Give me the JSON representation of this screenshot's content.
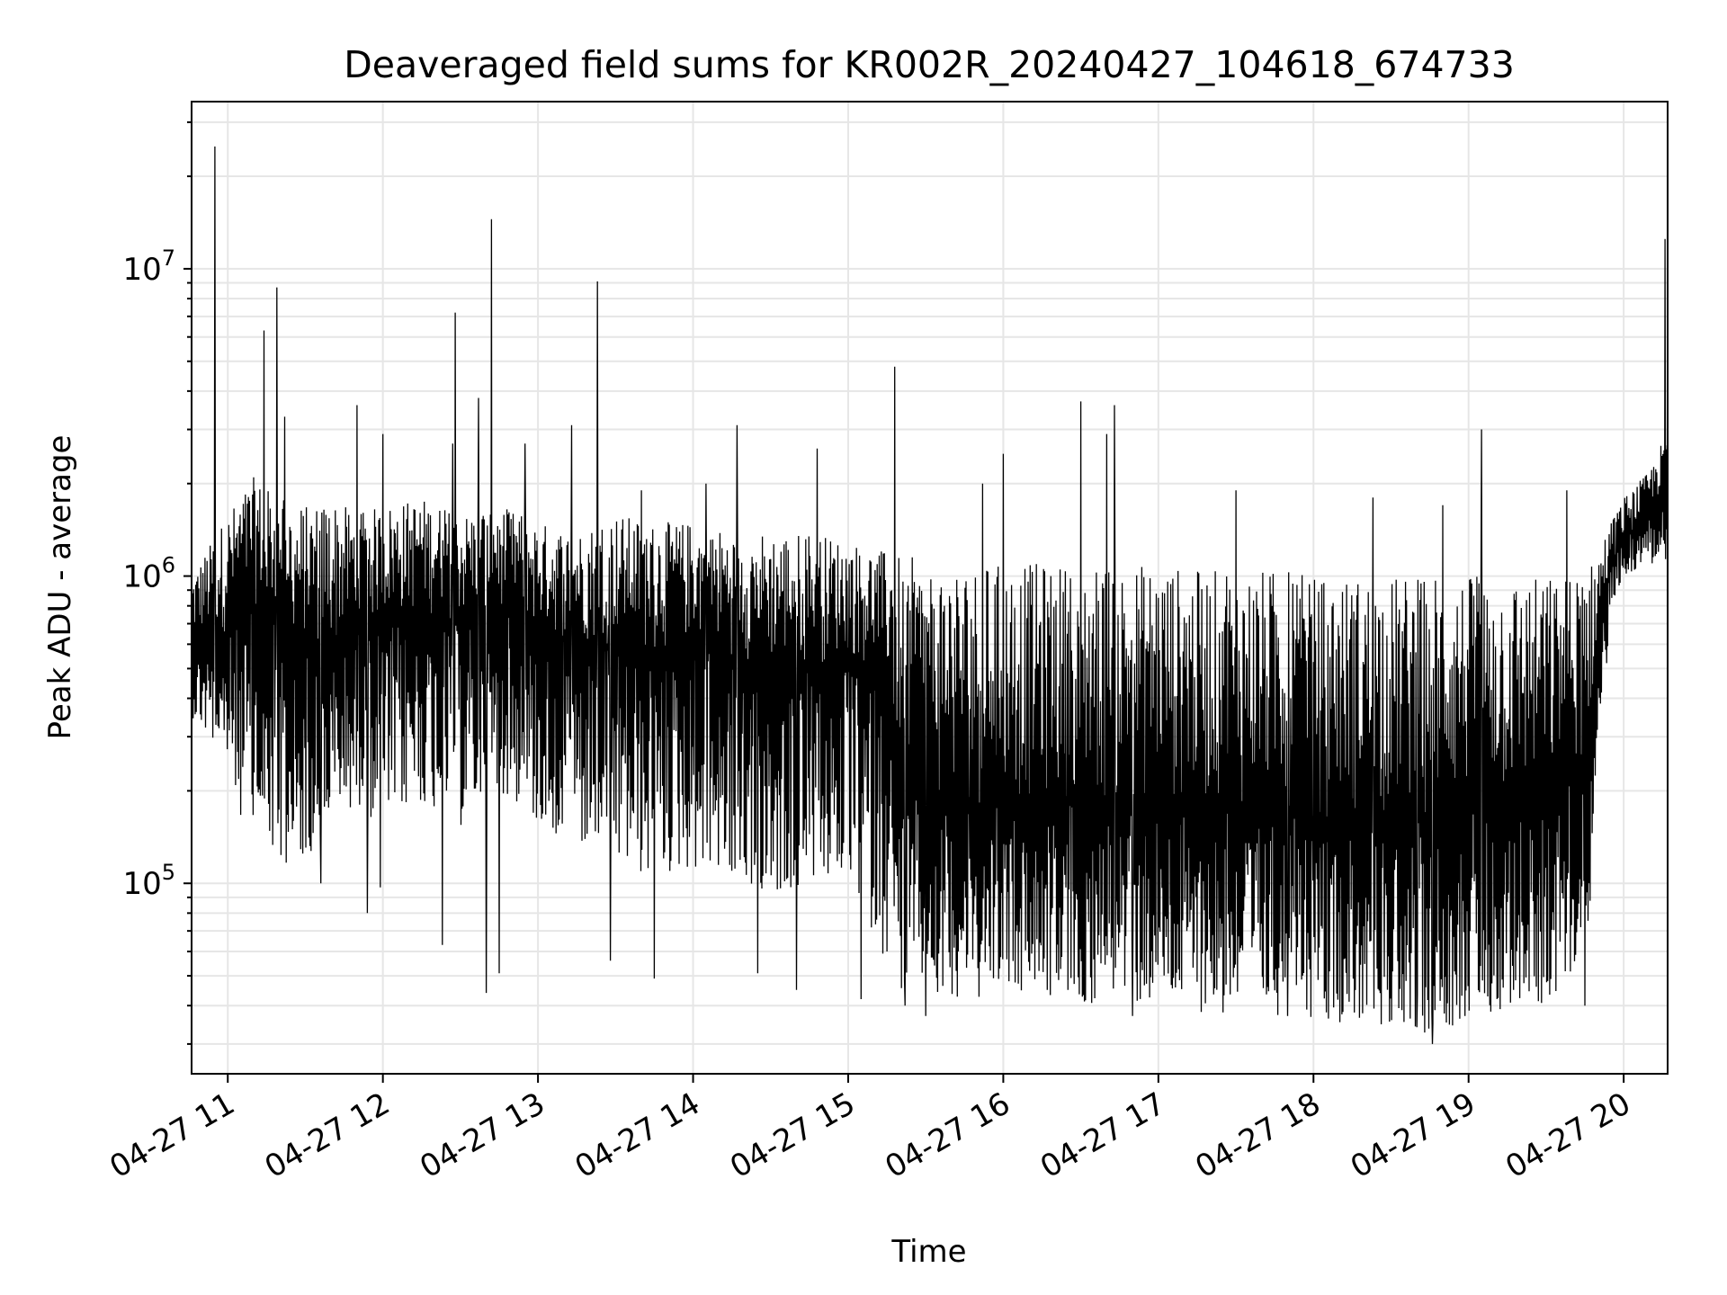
{
  "chart_data": {
    "type": "line",
    "title": "Deaveraged field sums for KR002R_20240427_104618_674733",
    "xlabel": "Time",
    "ylabel": "Peak ADU - average",
    "x_scale": "time",
    "y_scale": "log",
    "xlim": [
      "2024-04-27 10:46",
      "2024-04-27 20:17"
    ],
    "ylim": [
      24000,
      35000000
    ],
    "x_ticks": [
      "04-27 11",
      "04-27 12",
      "04-27 13",
      "04-27 14",
      "04-27 15",
      "04-27 16",
      "04-27 17",
      "04-27 18",
      "04-27 19",
      "04-27 20"
    ],
    "y_ticks": [
      {
        "value": 100000,
        "base": "10",
        "exp": "5"
      },
      {
        "value": 1000000,
        "base": "10",
        "exp": "6"
      },
      {
        "value": 10000000,
        "base": "10",
        "exp": "7"
      }
    ],
    "grid": true,
    "line_color": "#000000",
    "series": [
      {
        "x": [
          "10:46",
          "11:00",
          "11:10",
          "11:20",
          "11:30",
          "11:40",
          "11:50",
          "12:00",
          "12:15",
          "12:30",
          "12:45",
          "13:00",
          "13:15",
          "13:30",
          "13:45",
          "14:00",
          "14:15",
          "14:30",
          "14:45",
          "15:00",
          "15:15",
          "15:20",
          "15:30",
          "15:45",
          "16:00",
          "16:15",
          "16:30",
          "16:45",
          "17:00",
          "17:15",
          "17:30",
          "17:45",
          "18:00",
          "18:15",
          "18:30",
          "18:45",
          "19:00",
          "19:15",
          "19:30",
          "19:45",
          "19:55",
          "20:00",
          "20:10",
          "20:17"
        ],
        "y": [
          600000,
          650000,
          800000,
          700000,
          600000,
          550000,
          650000,
          700000,
          750000,
          700000,
          800000,
          650000,
          600000,
          600000,
          550000,
          600000,
          550000,
          500000,
          500000,
          550000,
          450000,
          200000,
          180000,
          170000,
          180000,
          180000,
          180000,
          170000,
          180000,
          170000,
          170000,
          165000,
          160000,
          160000,
          160000,
          160000,
          170000,
          170000,
          180000,
          250000,
          1100000,
          1300000,
          1600000,
          2000000
        ],
        "low": [
          350000,
          230000,
          120000,
          110000,
          120000,
          150000,
          180000,
          150000,
          180000,
          150000,
          200000,
          150000,
          130000,
          110000,
          100000,
          110000,
          100000,
          90000,
          95000,
          100000,
          55000,
          45000,
          45000,
          42000,
          42000,
          42000,
          40000,
          38000,
          40000,
          38000,
          38000,
          37000,
          36000,
          35000,
          34000,
          32000,
          36000,
          38000,
          40000,
          50000,
          800000,
          1000000,
          1100000,
          1100000
        ],
        "high": [
          1000000,
          1600000,
          2100000,
          1800000,
          1700000,
          1800000,
          1600000,
          1700000,
          1800000,
          1600000,
          1700000,
          1500000,
          1400000,
          1600000,
          1500000,
          1500000,
          1400000,
          1400000,
          1400000,
          1300000,
          1200000,
          1200000,
          1100000,
          1100000,
          1100000,
          1100000,
          1100000,
          1100000,
          1100000,
          1050000,
          1050000,
          1050000,
          1000000,
          1000000,
          1000000,
          1000000,
          1000000,
          1000000,
          1000000,
          1000000,
          1500000,
          1800000,
          2200000,
          3000000
        ],
        "spikes": [
          {
            "t": "10:55",
            "y": 25000000
          },
          {
            "t": "11:14",
            "y": 6300000
          },
          {
            "t": "11:19",
            "y": 8700000
          },
          {
            "t": "11:22",
            "y": 3300000
          },
          {
            "t": "11:50",
            "y": 3600000
          },
          {
            "t": "12:00",
            "y": 2900000
          },
          {
            "t": "12:27",
            "y": 2700000
          },
          {
            "t": "12:28",
            "y": 7200000
          },
          {
            "t": "12:37",
            "y": 3800000
          },
          {
            "t": "12:42",
            "y": 14500000
          },
          {
            "t": "12:55",
            "y": 2700000
          },
          {
            "t": "13:13",
            "y": 3100000
          },
          {
            "t": "13:23",
            "y": 9100000
          },
          {
            "t": "13:40",
            "y": 1900000
          },
          {
            "t": "14:05",
            "y": 2000000
          },
          {
            "t": "14:17",
            "y": 3100000
          },
          {
            "t": "14:48",
            "y": 2600000
          },
          {
            "t": "15:18",
            "y": 4800000
          },
          {
            "t": "15:22",
            "y": 2600000
          },
          {
            "t": "15:52",
            "y": 2000000
          },
          {
            "t": "16:00",
            "y": 2500000
          },
          {
            "t": "16:30",
            "y": 3700000
          },
          {
            "t": "16:40",
            "y": 2900000
          },
          {
            "t": "16:43",
            "y": 3600000
          },
          {
            "t": "17:30",
            "y": 1900000
          },
          {
            "t": "18:23",
            "y": 1800000
          },
          {
            "t": "18:50",
            "y": 1700000
          },
          {
            "t": "19:05",
            "y": 3000000
          },
          {
            "t": "19:38",
            "y": 1900000
          },
          {
            "t": "20:16",
            "y": 12500000
          }
        ],
        "dips": [
          {
            "t": "11:25",
            "y": 150000
          },
          {
            "t": "11:29",
            "y": 125000
          },
          {
            "t": "11:36",
            "y": 100000
          },
          {
            "t": "11:54",
            "y": 80000
          },
          {
            "t": "11:59",
            "y": 97000
          },
          {
            "t": "12:23",
            "y": 63000
          },
          {
            "t": "12:40",
            "y": 44000
          },
          {
            "t": "12:45",
            "y": 51000
          },
          {
            "t": "13:28",
            "y": 56000
          },
          {
            "t": "13:45",
            "y": 49000
          },
          {
            "t": "14:25",
            "y": 51000
          },
          {
            "t": "14:40",
            "y": 45000
          },
          {
            "t": "15:05",
            "y": 42000
          },
          {
            "t": "15:22",
            "y": 40000
          },
          {
            "t": "15:30",
            "y": 37000
          },
          {
            "t": "16:25",
            "y": 45000
          },
          {
            "t": "16:50",
            "y": 37000
          },
          {
            "t": "17:25",
            "y": 38000
          },
          {
            "t": "17:50",
            "y": 37000
          },
          {
            "t": "18:05",
            "y": 38000
          },
          {
            "t": "18:40",
            "y": 34000
          },
          {
            "t": "18:46",
            "y": 30000
          },
          {
            "t": "19:45",
            "y": 40000
          }
        ]
      }
    ]
  }
}
